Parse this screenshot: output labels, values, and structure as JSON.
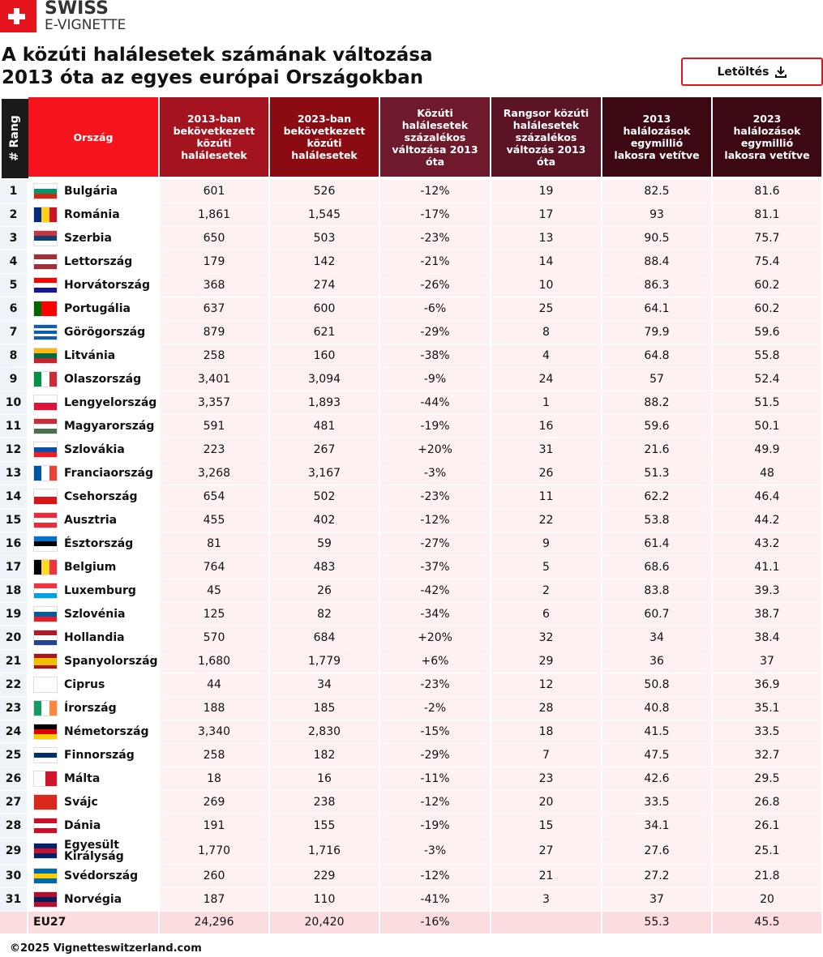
{
  "header": {
    "logo_line1": "SWISS",
    "logo_line2": "E-VIGNETTE",
    "title_line1": "A közúti halálesetek számának változása",
    "title_line2": "2013 óta az egyes európai Országokban",
    "download": "Letöltés"
  },
  "table": {
    "columns": [
      "# Rang",
      "Ország",
      "2013-ban bekövetkezett közúti halálesetek",
      "2023-ban bekövetkezett közúti halálesetek",
      "Közúti halálesetek százalékos változása 2013 óta",
      "Rangsor közúti halálesetek százalékos változás 2013 óta",
      "2013 halálozások egymillió lakosra vetítve",
      "2023 halálozások egymillió lakosra vetítve"
    ],
    "rows": [
      [
        "1",
        "Bulgária",
        "601",
        "526",
        "-12%",
        "19",
        "82.5",
        "81.6"
      ],
      [
        "2",
        "Románia",
        "1,861",
        "1,545",
        "-17%",
        "17",
        "93",
        "81.1"
      ],
      [
        "3",
        "Szerbia",
        "650",
        "503",
        "-23%",
        "13",
        "90.5",
        "75.7"
      ],
      [
        "4",
        "Lettország",
        "179",
        "142",
        "-21%",
        "14",
        "88.4",
        "75.4"
      ],
      [
        "5",
        "Horvátország",
        "368",
        "274",
        "-26%",
        "10",
        "86.3",
        "60.2"
      ],
      [
        "6",
        "Portugália",
        "637",
        "600",
        "-6%",
        "25",
        "64.1",
        "60.2"
      ],
      [
        "7",
        "Görögország",
        "879",
        "621",
        "-29%",
        "8",
        "79.9",
        "59.6"
      ],
      [
        "8",
        "Litvánia",
        "258",
        "160",
        "-38%",
        "4",
        "64.8",
        "55.8"
      ],
      [
        "9",
        "Olaszország",
        "3,401",
        "3,094",
        "-9%",
        "24",
        "57",
        "52.4"
      ],
      [
        "10",
        "Lengyelország",
        "3,357",
        "1,893",
        "-44%",
        "1",
        "88.2",
        "51.5"
      ],
      [
        "11",
        "Magyarország",
        "591",
        "481",
        "-19%",
        "16",
        "59.6",
        "50.1"
      ],
      [
        "12",
        "Szlovákia",
        "223",
        "267",
        "+20%",
        "31",
        "21.6",
        "49.9"
      ],
      [
        "13",
        "Franciaország",
        "3,268",
        "3,167",
        "-3%",
        "26",
        "51.3",
        "48"
      ],
      [
        "14",
        "Csehország",
        "654",
        "502",
        "-23%",
        "11",
        "62.2",
        "46.4"
      ],
      [
        "15",
        "Ausztria",
        "455",
        "402",
        "-12%",
        "22",
        "53.8",
        "44.2"
      ],
      [
        "16",
        "Észtország",
        "81",
        "59",
        "-27%",
        "9",
        "61.4",
        "43.2"
      ],
      [
        "17",
        "Belgium",
        "764",
        "483",
        "-37%",
        "5",
        "68.6",
        "41.1"
      ],
      [
        "18",
        "Luxemburg",
        "45",
        "26",
        "-42%",
        "2",
        "83.8",
        "39.3"
      ],
      [
        "19",
        "Szlovénia",
        "125",
        "82",
        "-34%",
        "6",
        "60.7",
        "38.7"
      ],
      [
        "20",
        "Hollandia",
        "570",
        "684",
        "+20%",
        "32",
        "34",
        "38.4"
      ],
      [
        "21",
        "Spanyolország",
        "1,680",
        "1,779",
        "+6%",
        "29",
        "36",
        "37"
      ],
      [
        "22",
        "Ciprus",
        "44",
        "34",
        "-23%",
        "12",
        "50.8",
        "36.9"
      ],
      [
        "23",
        "Írország",
        "188",
        "185",
        "-2%",
        "28",
        "40.8",
        "35.1"
      ],
      [
        "24",
        "Németország",
        "3,340",
        "2,830",
        "-15%",
        "18",
        "41.5",
        "33.5"
      ],
      [
        "25",
        "Finnország",
        "258",
        "182",
        "-29%",
        "7",
        "47.5",
        "32.7"
      ],
      [
        "26",
        "Málta",
        "18",
        "16",
        "-11%",
        "23",
        "42.6",
        "29.5"
      ],
      [
        "27",
        "Svájc",
        "269",
        "238",
        "-12%",
        "20",
        "33.5",
        "26.8"
      ],
      [
        "28",
        "Dánia",
        "191",
        "155",
        "-19%",
        "15",
        "34.1",
        "26.1"
      ],
      [
        "29",
        "Egyesült Királyság",
        "1,770",
        "1,716",
        "-3%",
        "27",
        "27.6",
        "25.1"
      ],
      [
        "30",
        "Svédország",
        "260",
        "229",
        "-12%",
        "21",
        "27.2",
        "21.8"
      ],
      [
        "31",
        "Norvégia",
        "187",
        "110",
        "-41%",
        "3",
        "37",
        "20"
      ]
    ],
    "total": [
      "EU27",
      "24,296",
      "20,420",
      "-16%",
      "55.3",
      "45.5"
    ]
  },
  "footer": "©2025 Vignetteswitzerland.com"
}
